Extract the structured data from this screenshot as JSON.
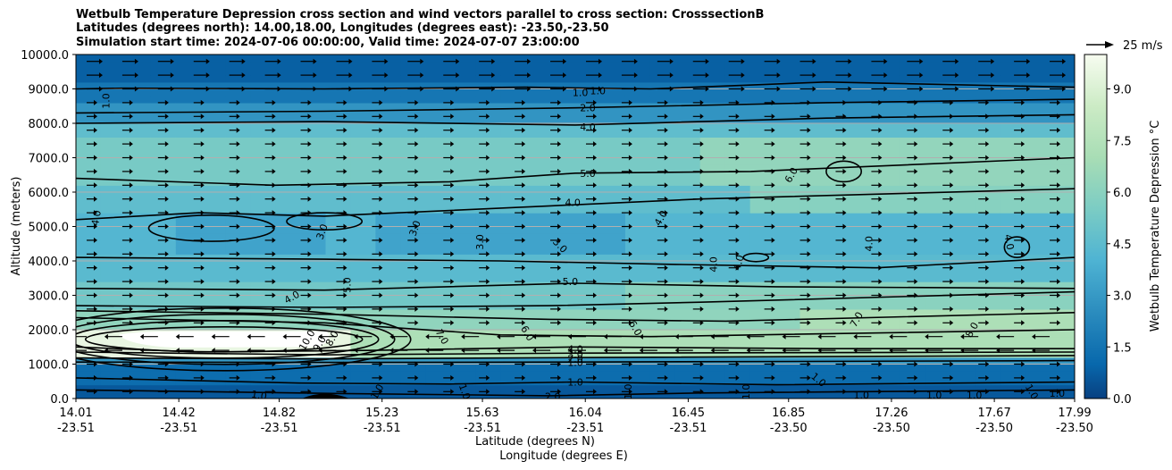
{
  "title": {
    "line1": "Wetbulb Temperature Depression cross section and wind vectors parallel to cross section: CrosssectionB",
    "line2": "Latitudes (degrees north): 14.00,18.00, Longitudes (degrees east): -23.50,-23.50",
    "line3": "Simulation start time: 2024-07-06 00:00:00, Valid time: 2024-07-07 23:00:00"
  },
  "chart_data": {
    "type": "heatmap",
    "subtype": "filled contour cross section with contour lines and wind vectors",
    "ylabel": "Altitude (meters)",
    "xlabel_lines": [
      "Latitude (degrees N)",
      "Longitude (degrees E)"
    ],
    "ylim": [
      0,
      10000
    ],
    "yticks": [
      "0.0",
      "1000.0",
      "2000.0",
      "3000.0",
      "4000.0",
      "5000.0",
      "6000.0",
      "7000.0",
      "8000.0",
      "9000.0",
      "10000.0"
    ],
    "ytick_values": [
      0,
      1000,
      2000,
      3000,
      4000,
      5000,
      6000,
      7000,
      8000,
      9000,
      10000
    ],
    "xticks": [
      {
        "lat": "14.01",
        "lon": "-23.51"
      },
      {
        "lat": "14.42",
        "lon": "-23.51"
      },
      {
        "lat": "14.82",
        "lon": "-23.51"
      },
      {
        "lat": "15.23",
        "lon": "-23.51"
      },
      {
        "lat": "15.63",
        "lon": "-23.51"
      },
      {
        "lat": "16.04",
        "lon": "-23.51"
      },
      {
        "lat": "16.45",
        "lon": "-23.51"
      },
      {
        "lat": "16.85",
        "lon": "-23.50"
      },
      {
        "lat": "17.26",
        "lon": "-23.50"
      },
      {
        "lat": "17.67",
        "lon": "-23.50"
      },
      {
        "lat": "17.99",
        "lon": "-23.50"
      }
    ],
    "xtick_values": [
      14.01,
      14.42,
      14.82,
      15.23,
      15.63,
      16.04,
      16.45,
      16.85,
      17.26,
      17.67,
      17.99
    ],
    "xlim": [
      14.01,
      17.99
    ],
    "grid": "horizontal",
    "colorbar": {
      "label": "Wetbulb Temperature Depression °C",
      "range": [
        0,
        10
      ],
      "ticks": [
        "0.0",
        "1.5",
        "3.0",
        "4.5",
        "6.0",
        "7.5",
        "9.0"
      ],
      "tick_values": [
        0,
        1.5,
        3.0,
        4.5,
        6.0,
        7.5,
        9.0
      ],
      "colormap": "GnBu_r"
    },
    "wind_key": {
      "label": "25 m/s",
      "speed": 25
    },
    "contour_labels": [
      {
        "text": "1.0",
        "lat": 14.13,
        "alt": 8650,
        "rot": 90
      },
      {
        "text": "1.0",
        "lat": 16.02,
        "alt": 8900,
        "rot": 0
      },
      {
        "text": "1.0",
        "lat": 16.09,
        "alt": 8950,
        "rot": 0
      },
      {
        "text": "2.0",
        "lat": 16.05,
        "alt": 8450,
        "rot": 0
      },
      {
        "text": "4.0",
        "lat": 16.05,
        "alt": 7900,
        "rot": 0
      },
      {
        "text": "5.0",
        "lat": 16.05,
        "alt": 6550,
        "rot": 0
      },
      {
        "text": "6.0",
        "lat": 16.86,
        "alt": 6500,
        "rot": 60
      },
      {
        "text": "4.0",
        "lat": 15.99,
        "alt": 5700,
        "rot": 0
      },
      {
        "text": "4.0",
        "lat": 14.09,
        "alt": 5250,
        "rot": 80
      },
      {
        "text": "3.0",
        "lat": 14.99,
        "alt": 4850,
        "rot": 70
      },
      {
        "text": "3.0",
        "lat": 15.36,
        "alt": 4950,
        "rot": 70
      },
      {
        "text": "3.0",
        "lat": 15.62,
        "alt": 4550,
        "rot": 90
      },
      {
        "text": "3.0",
        "lat": 15.94,
        "alt": 4450,
        "rot": -45
      },
      {
        "text": "4.0",
        "lat": 16.34,
        "alt": 5250,
        "rot": 60
      },
      {
        "text": "4.0",
        "lat": 16.55,
        "alt": 3900,
        "rot": 90
      },
      {
        "text": "4.0",
        "lat": 16.65,
        "alt": 3950,
        "rot": 75
      },
      {
        "text": "4.0",
        "lat": 17.17,
        "alt": 4500,
        "rot": 90
      },
      {
        "text": "4.0",
        "lat": 17.73,
        "alt": 4550,
        "rot": -80
      },
      {
        "text": "4.0",
        "lat": 14.87,
        "alt": 2950,
        "rot": 30
      },
      {
        "text": "5.0",
        "lat": 15.09,
        "alt": 3300,
        "rot": 90
      },
      {
        "text": "5.0",
        "lat": 15.98,
        "alt": 3400,
        "rot": 0
      },
      {
        "text": "6.0",
        "lat": 16.24,
        "alt": 2050,
        "rot": -60
      },
      {
        "text": "6.0",
        "lat": 15.81,
        "alt": 1900,
        "rot": -60
      },
      {
        "text": "7.0",
        "lat": 15.47,
        "alt": 1800,
        "rot": -60
      },
      {
        "text": "7.0",
        "lat": 17.12,
        "alt": 2300,
        "rot": 60
      },
      {
        "text": "8.0",
        "lat": 15.03,
        "alt": 1750,
        "rot": 60
      },
      {
        "text": "8.0",
        "lat": 17.58,
        "alt": 2000,
        "rot": 60
      },
      {
        "text": "9.0",
        "lat": 14.98,
        "alt": 1600,
        "rot": 60
      },
      {
        "text": "10.0",
        "lat": 14.93,
        "alt": 1700,
        "rot": 60
      },
      {
        "text": "4.0",
        "lat": 16.0,
        "alt": 1440,
        "rot": 0
      },
      {
        "text": "3.0",
        "lat": 16.0,
        "alt": 1280,
        "rot": 0
      },
      {
        "text": "2.0",
        "lat": 16.0,
        "alt": 1160,
        "rot": 0
      },
      {
        "text": "1.0",
        "lat": 16.0,
        "alt": 1050,
        "rot": 0
      },
      {
        "text": "1.0",
        "lat": 16.0,
        "alt": 480,
        "rot": 0
      },
      {
        "text": "2.0",
        "lat": 15.91,
        "alt": 60,
        "rot": 0
      },
      {
        "text": "1.0",
        "lat": 14.74,
        "alt": 100,
        "rot": -10
      },
      {
        "text": "1.0",
        "lat": 15.21,
        "alt": 200,
        "rot": 60
      },
      {
        "text": "1.0",
        "lat": 15.56,
        "alt": 200,
        "rot": -70
      },
      {
        "text": "1.0",
        "lat": 16.21,
        "alt": 200,
        "rot": 90
      },
      {
        "text": "1.0",
        "lat": 16.68,
        "alt": 200,
        "rot": 90
      },
      {
        "text": "1.0",
        "lat": 16.97,
        "alt": 550,
        "rot": -40
      },
      {
        "text": "1.0",
        "lat": 17.14,
        "alt": 100,
        "rot": 0
      },
      {
        "text": "1.0",
        "lat": 17.43,
        "alt": 100,
        "rot": 0
      },
      {
        "text": "1.0",
        "lat": 17.59,
        "alt": 100,
        "rot": 0
      },
      {
        "text": "1.0",
        "lat": 17.82,
        "alt": 200,
        "rot": -60
      },
      {
        "text": "1.0",
        "lat": 17.92,
        "alt": 150,
        "rot": 0
      }
    ]
  }
}
